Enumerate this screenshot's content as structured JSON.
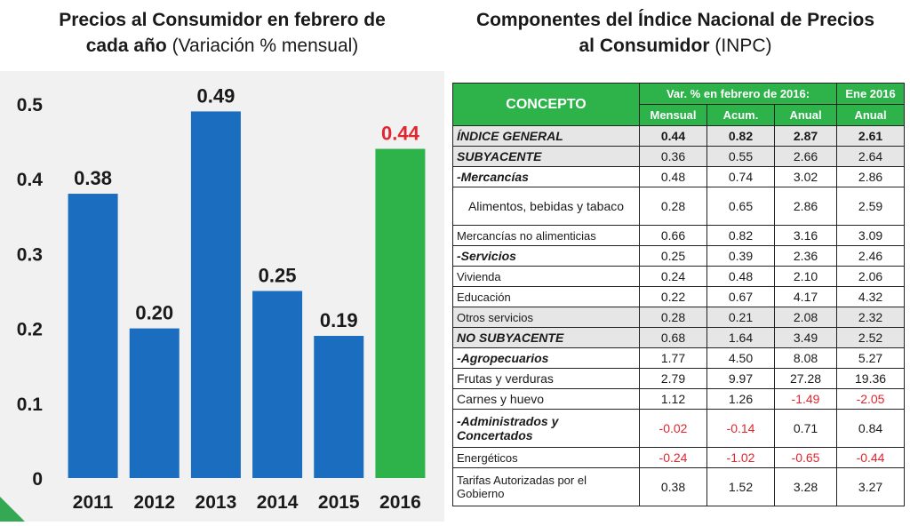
{
  "left_title": {
    "bold": "Precios al Consumidor en febrero de cada año",
    "normal": "(Variación % mensual)"
  },
  "right_title": {
    "bold": "Componentes del Índice Nacional de Precios al Consumidor",
    "normal": "(INPC)"
  },
  "chart_data": {
    "type": "bar",
    "categories": [
      "2011",
      "2012",
      "2013",
      "2014",
      "2015",
      "2016"
    ],
    "values": [
      0.38,
      0.2,
      0.49,
      0.25,
      0.19,
      0.44
    ],
    "value_labels": [
      "0.38",
      "0.20",
      "0.49",
      "0.25",
      "0.19",
      "0.44"
    ],
    "ylim": [
      0,
      0.5
    ],
    "yticks": [
      "0",
      "0.1",
      "0.2",
      "0.3",
      "0.4",
      "0.5"
    ],
    "colors": [
      "#1b6dbf",
      "#1b6dbf",
      "#1b6dbf",
      "#1b6dbf",
      "#1b6dbf",
      "#2db34a"
    ],
    "highlight_label_color": "#e0262e",
    "grid": false
  },
  "table": {
    "header": {
      "concept": "CONCEPTO",
      "group1": "Var. % en febrero de 2016:",
      "group2": "Ene 2016",
      "cols": [
        "Mensual",
        "Acum.",
        "Anual",
        "Anual"
      ]
    },
    "rows": [
      {
        "label": "ÍNDICE GENERAL",
        "values": [
          "0.44",
          "0.82",
          "2.87",
          "2.61"
        ]
      },
      {
        "label": "SUBYACENTE",
        "values": [
          "0.36",
          "0.55",
          "2.66",
          "2.64"
        ]
      },
      {
        "label": "-Mercancías",
        "values": [
          "0.48",
          "0.74",
          "3.02",
          "2.86"
        ]
      },
      {
        "label": "Alimentos, bebidas y tabaco",
        "values": [
          "0.28",
          "0.65",
          "2.86",
          "2.59"
        ]
      },
      {
        "label": "Mercancías no alimenticias",
        "values": [
          "0.66",
          "0.82",
          "3.16",
          "3.09"
        ]
      },
      {
        "label": "-Servicios",
        "values": [
          "0.25",
          "0.39",
          "2.36",
          "2.46"
        ]
      },
      {
        "label": "Vivienda",
        "values": [
          "0.24",
          "0.48",
          "2.10",
          "2.06"
        ]
      },
      {
        "label": "Educación",
        "values": [
          "0.22",
          "0.67",
          "4.17",
          "4.32"
        ]
      },
      {
        "label": "Otros servicios",
        "values": [
          "0.28",
          "0.21",
          "2.08",
          "2.32"
        ]
      },
      {
        "label": "NO SUBYACENTE",
        "values": [
          "0.68",
          "1.64",
          "3.49",
          "2.52"
        ]
      },
      {
        "label": "-Agropecuarios",
        "values": [
          "1.77",
          "4.50",
          "8.08",
          "5.27"
        ]
      },
      {
        "label": "Frutas y verduras",
        "values": [
          "2.79",
          "9.97",
          "27.28",
          "19.36"
        ]
      },
      {
        "label": "Carnes y huevo",
        "values": [
          "1.12",
          "1.26",
          "-1.49",
          "-2.05"
        ]
      },
      {
        "label": "-Administrados y Concertados",
        "values": [
          "-0.02",
          "-0.14",
          "0.71",
          "0.84"
        ]
      },
      {
        "label": "Energéticos",
        "values": [
          "-0.24",
          "-1.02",
          "-0.65",
          "-0.44"
        ]
      },
      {
        "label": "Tarifas Autorizadas por el Gobierno",
        "values": [
          "0.38",
          "1.52",
          "3.28",
          "3.27"
        ]
      }
    ]
  }
}
